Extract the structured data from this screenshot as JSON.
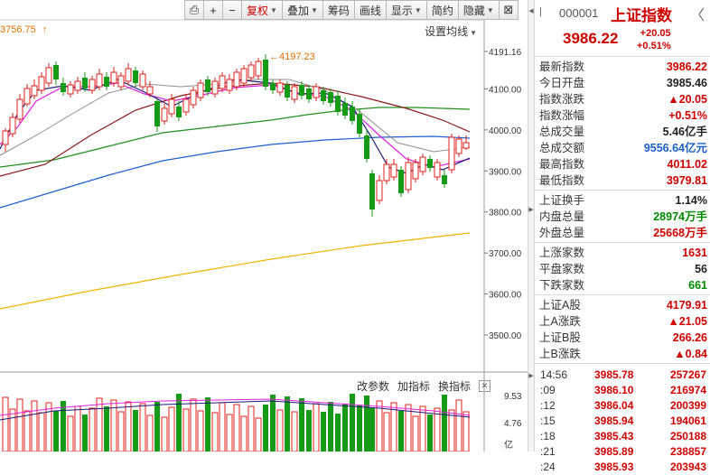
{
  "toolbar": {
    "items": [
      {
        "label": "⎙",
        "type": "icon"
      },
      {
        "label": "+",
        "type": "icon"
      },
      {
        "label": "−",
        "type": "icon"
      },
      {
        "label": "复权",
        "type": "dropdown"
      },
      {
        "label": "叠加",
        "type": "dropdown"
      },
      {
        "label": "筹码",
        "type": "button"
      },
      {
        "label": "画线",
        "type": "button"
      },
      {
        "label": "显示",
        "type": "dropdown"
      },
      {
        "label": "简约",
        "type": "button"
      },
      {
        "label": "隐藏",
        "type": "dropdown"
      },
      {
        "label": "⊠",
        "type": "icon"
      }
    ]
  },
  "chart": {
    "top_left_label": "3756.75",
    "top_left_arrow": "↑",
    "ma_settings": "设置均线",
    "high_label": "←4197.23",
    "y_ticks": [
      "4191.16",
      "4100.00",
      "4000.00",
      "3900.00",
      "3800.00",
      "3700.00",
      "3600.00",
      "3500.00"
    ],
    "y_tick_values": [
      4191.16,
      4100,
      4000,
      3900,
      3800,
      3700,
      3600,
      3500
    ],
    "volume_ticks": [
      "9.53",
      "4.76"
    ],
    "volume_unit": "亿",
    "indicator_buttons": [
      "改参数",
      "加指标",
      "换指标"
    ],
    "colors": {
      "up": "#e0201c",
      "down": "#159b15",
      "ma5": "#1b1b7a",
      "ma10": "#e020e0",
      "ma20": "#909090",
      "ma30": "#8b1a1a",
      "ma60": "#1f8f1f",
      "ma120": "#1f5fcf",
      "ma250": "#f0b400"
    }
  },
  "quote": {
    "code": "000001",
    "name": "上证指数",
    "price": "3986.22",
    "change": "+20.05",
    "change_pct": "+0.51%",
    "prev_icon": "previous-icon",
    "next_icon": "next-icon",
    "group1": [
      {
        "label": "最新指数",
        "value": "3986.22",
        "color": "red"
      },
      {
        "label": "今日开盘",
        "value": "3985.46",
        "color": "black"
      },
      {
        "label": "指数涨跌",
        "value": "▲20.05",
        "color": "red"
      },
      {
        "label": "指数涨幅",
        "value": "+0.51%",
        "color": "red"
      },
      {
        "label": "总成交量",
        "value": "5.46亿手",
        "color": "black"
      },
      {
        "label": "总成交额",
        "value": "9556.64亿元",
        "color": "blue"
      },
      {
        "label": "最高指数",
        "value": "4011.02",
        "color": "red"
      },
      {
        "label": "最低指数",
        "value": "3979.81",
        "color": "red"
      }
    ],
    "group2": [
      {
        "label": "上证换手",
        "value": "1.14%",
        "color": "black"
      },
      {
        "label": "内盘总量",
        "value": "28974万手",
        "color": "green"
      },
      {
        "label": "外盘总量",
        "value": "25668万手",
        "color": "red"
      }
    ],
    "group3": [
      {
        "label": "上涨家数",
        "value": "1631",
        "color": "red"
      },
      {
        "label": "平盘家数",
        "value": "56",
        "color": "black"
      },
      {
        "label": "下跌家数",
        "value": "661",
        "color": "green"
      }
    ],
    "group4": [
      {
        "label": "上证A股",
        "value": "4179.91",
        "color": "red"
      },
      {
        "label": "上A涨跌",
        "value": "▲21.05",
        "color": "red"
      },
      {
        "label": "上证B股",
        "value": "266.26",
        "color": "red"
      },
      {
        "label": "上B涨跌",
        "value": "▲0.84",
        "color": "red"
      }
    ],
    "ticks": [
      {
        "time": "14:56",
        "price": "3985.78",
        "vol": "257267"
      },
      {
        "time": ":09",
        "price": "3986.10",
        "vol": "216974"
      },
      {
        "time": ":12",
        "price": "3986.04",
        "vol": "200399"
      },
      {
        "time": ":15",
        "price": "3985.94",
        "vol": "194061"
      },
      {
        "time": ":18",
        "price": "3985.43",
        "vol": "250188"
      },
      {
        "time": ":21",
        "price": "3985.89",
        "vol": "238857"
      },
      {
        "time": ":24",
        "price": "3985.93",
        "vol": "203943"
      }
    ]
  }
}
